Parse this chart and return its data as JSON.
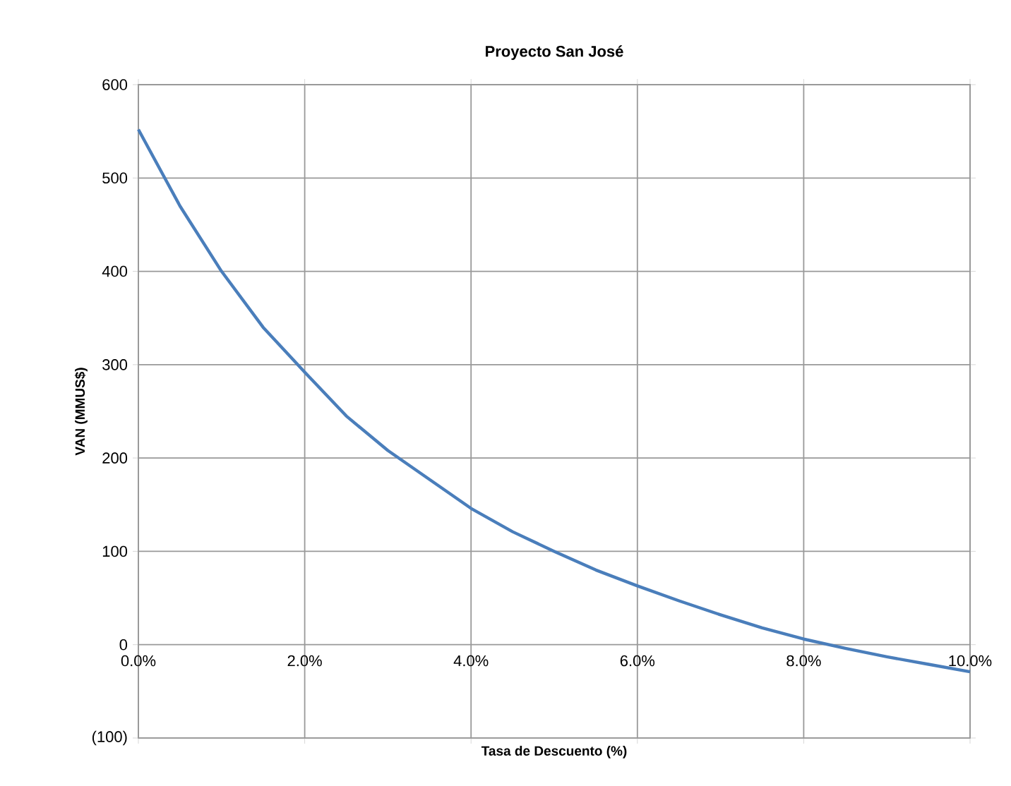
{
  "chart_data": {
    "type": "line",
    "title": "Proyecto San José",
    "xlabel": "Tasa de Descuento (%)",
    "ylabel": "VAN (MMUS$)",
    "x": [
      0,
      0.5,
      1,
      1.5,
      2,
      2.5,
      3,
      3.5,
      4,
      4.5,
      5,
      5.5,
      6,
      6.5,
      7,
      7.5,
      8,
      8.5,
      9,
      9.5,
      10
    ],
    "series": [
      {
        "color": "#4a7ebb",
        "values": [
          552,
          470,
          400,
          340,
          292,
          245,
          208,
          177,
          146,
          121,
          100,
          80,
          63,
          47,
          32,
          18,
          6,
          -4,
          -13,
          -21,
          -29
        ]
      }
    ],
    "xlim": [
      0,
      10
    ],
    "ylim": [
      -100,
      600
    ],
    "xticks": [
      {
        "value": 0,
        "label": "0.0%"
      },
      {
        "value": 2,
        "label": "2.0%"
      },
      {
        "value": 4,
        "label": "4.0%"
      },
      {
        "value": 6,
        "label": "6.0%"
      },
      {
        "value": 8,
        "label": "8.0%"
      },
      {
        "value": 10,
        "label": "10.0%"
      }
    ],
    "yticks": [
      {
        "value": -100,
        "label": "(100)"
      },
      0,
      100,
      200,
      300,
      400,
      500,
      600
    ],
    "grid": true,
    "marker": "none",
    "line_style": "solid"
  }
}
